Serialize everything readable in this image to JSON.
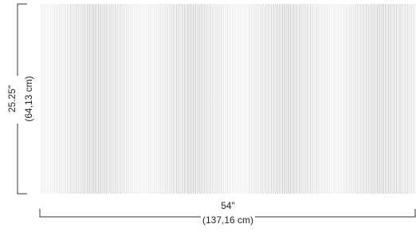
{
  "dimensions": {
    "height": {
      "label": "25.25\"",
      "metric": "(64,13 cm)"
    },
    "width": {
      "label": "54\"",
      "metric": "(137,16 cm)"
    }
  }
}
